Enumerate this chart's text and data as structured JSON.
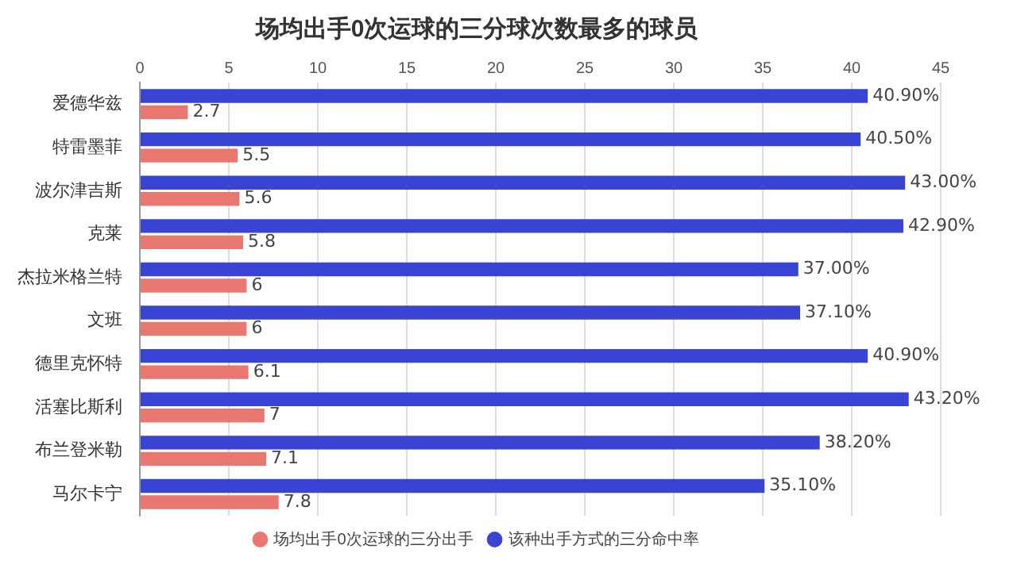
{
  "chart_data": {
    "type": "bar",
    "orientation": "horizontal",
    "title": "场均出手0次运球的三分球次数最多的球员",
    "categories": [
      "爱德华兹",
      "特雷墨菲",
      "波尔津吉斯",
      "克莱",
      "杰拉米格兰特",
      "文班",
      "德里克怀特",
      "活塞比斯利",
      "布兰登米勒",
      "马尔卡宁"
    ],
    "series": [
      {
        "name": "场均出手0次运球的三分出手",
        "color": "#e8786f",
        "values": [
          2.7,
          5.5,
          5.6,
          5.8,
          6,
          6,
          6.1,
          7,
          7.1,
          7.8
        ],
        "value_labels": [
          "2.7",
          "5.5",
          "5.6",
          "5.8",
          "6",
          "6",
          "6.1",
          "7",
          "7.1",
          "7.8"
        ]
      },
      {
        "name": "该种出手方式的三分命中率",
        "color": "#3a44d4",
        "values": [
          40.9,
          40.5,
          43.0,
          42.9,
          37.0,
          37.1,
          40.9,
          43.2,
          38.2,
          35.1
        ],
        "value_labels": [
          "40.90%",
          "40.50%",
          "43.00%",
          "42.90%",
          "37.00%",
          "37.10%",
          "40.90%",
          "43.20%",
          "38.20%",
          "35.10%"
        ]
      }
    ],
    "xlim": [
      0,
      45
    ],
    "xticks": [
      0,
      5,
      10,
      15,
      20,
      25,
      30,
      35,
      40,
      45
    ],
    "grid": "x",
    "legend": "bottom"
  }
}
